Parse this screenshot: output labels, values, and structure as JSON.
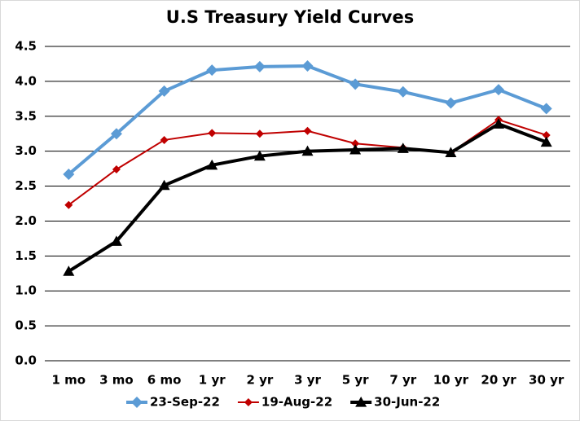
{
  "chart_data": {
    "type": "line",
    "title": "U.S Treasury Yield Curves",
    "categories": [
      "1 mo",
      "3 mo",
      "6 mo",
      "1 yr",
      "2 yr",
      "3 yr",
      "5 yr",
      "7 yr",
      "10 yr",
      "20 yr",
      "30 yr"
    ],
    "series": [
      {
        "name": "23-Sep-22",
        "color": "#5b9bd5",
        "marker": "diamond",
        "values": [
          2.67,
          3.25,
          3.86,
          4.16,
          4.21,
          4.22,
          3.96,
          3.85,
          3.69,
          3.88,
          3.61
        ]
      },
      {
        "name": "19-Aug-22",
        "color": "#c00000",
        "marker": "diamond",
        "values": [
          2.23,
          2.74,
          3.16,
          3.26,
          3.25,
          3.29,
          3.11,
          3.05,
          2.98,
          3.45,
          3.23
        ]
      },
      {
        "name": "30-Jun-22",
        "color": "#000000",
        "marker": "triangle",
        "values": [
          1.28,
          1.71,
          2.51,
          2.8,
          2.93,
          3.0,
          3.02,
          3.04,
          2.98,
          3.39,
          3.13
        ]
      }
    ],
    "ylim": [
      0,
      4.5
    ],
    "yticks": [
      {
        "value": 0,
        "label": "0.0"
      },
      0.5,
      {
        "value": 1,
        "label": "1.0"
      },
      1.5,
      {
        "value": 2,
        "label": "2.0"
      },
      2.5,
      {
        "value": 3,
        "label": "3.0"
      },
      3.5,
      {
        "value": 4,
        "label": "4.0"
      },
      4.5
    ],
    "grid": true,
    "legend": "bottom"
  }
}
